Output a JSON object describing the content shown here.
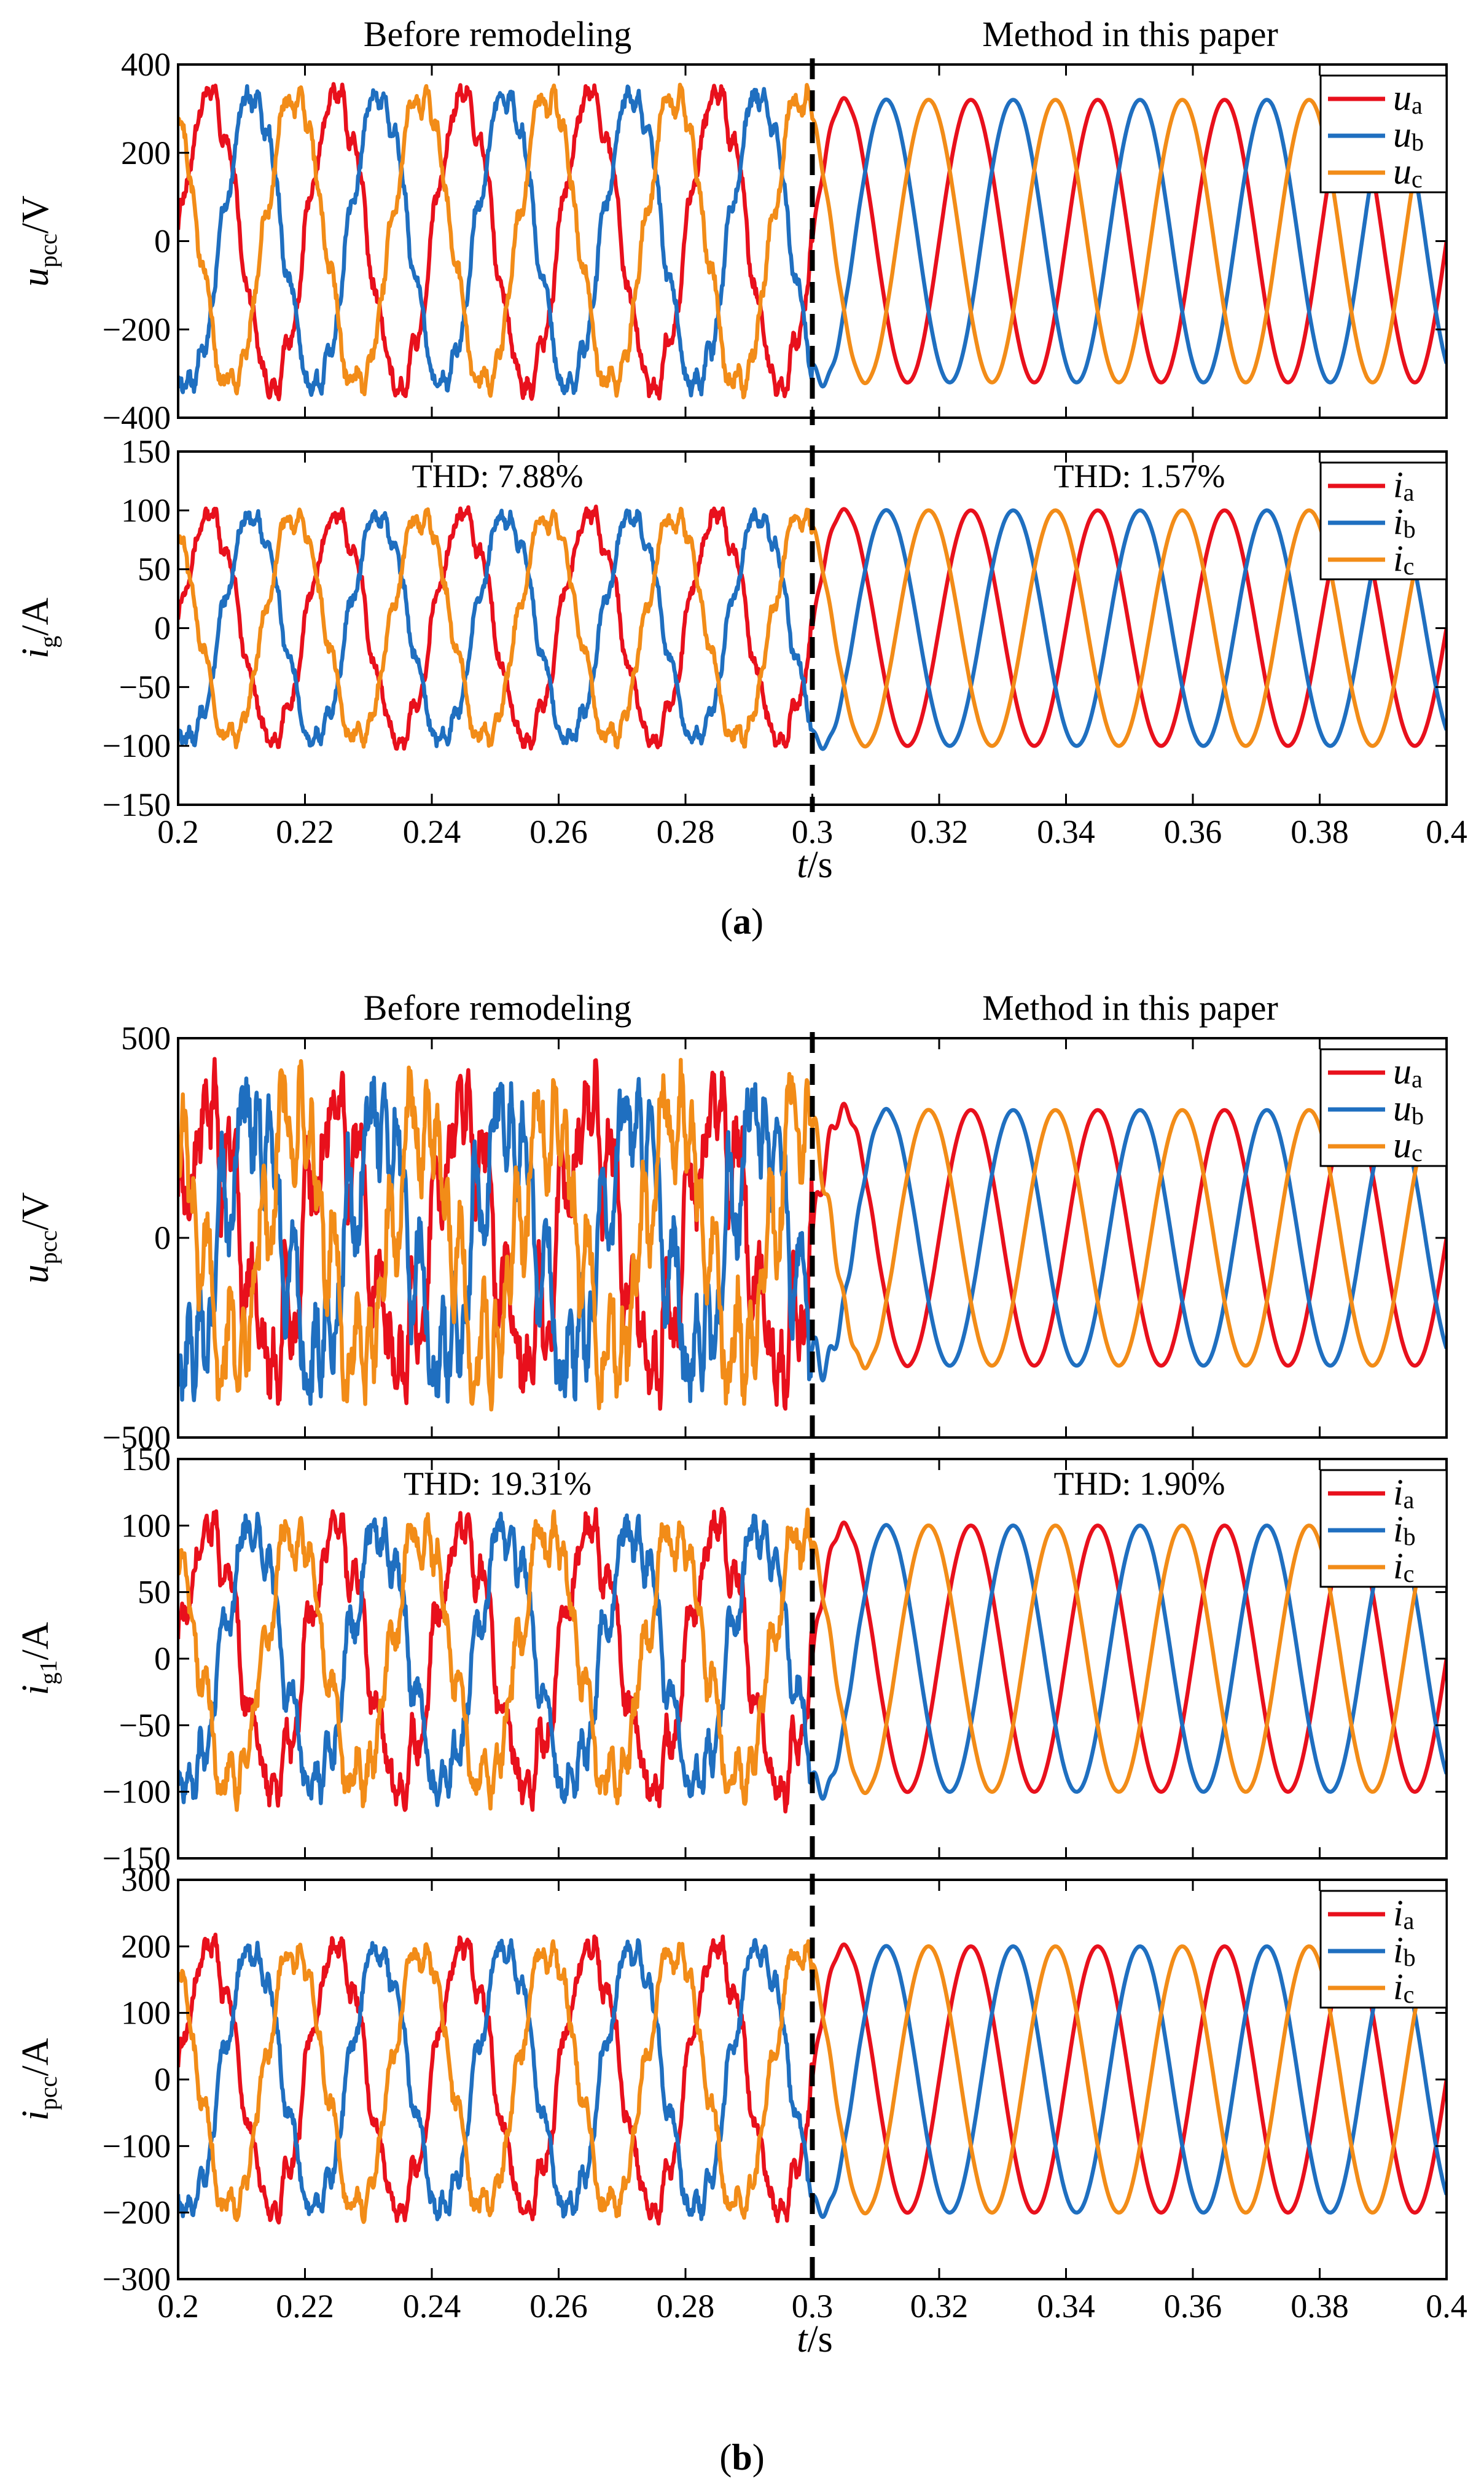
{
  "colors": {
    "a": "#e8101c",
    "b": "#1f6fc0",
    "c": "#f28c18",
    "divider": "#000000"
  },
  "chart_data": [
    {
      "type": "line",
      "panel": "a-top",
      "titles": [
        "Before remodeling",
        "Method in this paper"
      ],
      "ylabel": "u",
      "ylabel_sub": "pcc",
      "ylabel_unit": "/V",
      "xlim": [
        0.2,
        0.4
      ],
      "ylim": [
        -400,
        400
      ],
      "yticks": [
        "400",
        "200",
        "0",
        "−200",
        "−400"
      ],
      "ytick_values": [
        400,
        200,
        0,
        -200,
        -400
      ],
      "divider_x": 0.3,
      "legend": [
        {
          "main": "u",
          "sub": "a"
        },
        {
          "main": "u",
          "sub": "b"
        },
        {
          "main": "u",
          "sub": "c"
        }
      ],
      "series": [
        {
          "name": "ua",
          "amp_before": 330,
          "amp_after": 320,
          "phase_deg": 0,
          "noise": 35
        },
        {
          "name": "ub",
          "amp_before": 330,
          "amp_after": 320,
          "phase_deg": -120,
          "noise": 35
        },
        {
          "name": "uc",
          "amp_before": 330,
          "amp_after": 320,
          "phase_deg": 120,
          "noise": 35
        }
      ],
      "frequency_hz": 50
    },
    {
      "type": "line",
      "panel": "a-bottom",
      "annotations": [
        "THD: 7.88%",
        "THD: 1.57%"
      ],
      "ylabel": "i",
      "ylabel_sub": "g",
      "ylabel_unit": "/A",
      "xlim": [
        0.2,
        0.4
      ],
      "ylim": [
        -150,
        150
      ],
      "yticks": [
        "150",
        "100",
        "50",
        "0",
        "−50",
        "−100",
        "−150"
      ],
      "ytick_values": [
        150,
        100,
        50,
        0,
        -50,
        -100,
        -150
      ],
      "xticks": [
        "0.2",
        "0.22",
        "0.24",
        "0.26",
        "0.28",
        "0.3",
        "0.32",
        "0.34",
        "0.36",
        "0.38",
        "0.4"
      ],
      "xtick_values": [
        0.2,
        0.22,
        0.24,
        0.26,
        0.28,
        0.3,
        0.32,
        0.34,
        0.36,
        0.38,
        0.4
      ],
      "xlabel": "t",
      "xlabel_unit": "/s",
      "divider_x": 0.3,
      "legend": [
        {
          "main": "i",
          "sub": "a"
        },
        {
          "main": "i",
          "sub": "b"
        },
        {
          "main": "i",
          "sub": "c"
        }
      ],
      "series": [
        {
          "name": "ia",
          "amp_before": 95,
          "amp_after": 100,
          "phase_deg": 0,
          "noise": 10
        },
        {
          "name": "ib",
          "amp_before": 95,
          "amp_after": 100,
          "phase_deg": -120,
          "noise": 10
        },
        {
          "name": "ic",
          "amp_before": 95,
          "amp_after": 100,
          "phase_deg": 120,
          "noise": 10
        }
      ],
      "frequency_hz": 50
    },
    {
      "type": "line",
      "panel": "b-top",
      "titles": [
        "Before remodeling",
        "Method in this paper"
      ],
      "ylabel": "u",
      "ylabel_sub": "pcc",
      "ylabel_unit": "/V",
      "xlim": [
        0.2,
        0.4
      ],
      "ylim": [
        -500,
        500
      ],
      "yticks": [
        "500",
        "0",
        "−500"
      ],
      "ytick_values": [
        500,
        0,
        -500
      ],
      "divider_x": 0.3,
      "legend": [
        {
          "main": "u",
          "sub": "a"
        },
        {
          "main": "u",
          "sub": "b"
        },
        {
          "main": "u",
          "sub": "c"
        }
      ],
      "series": [
        {
          "name": "ua",
          "amp_before": 300,
          "amp_after": 320,
          "phase_deg": 0,
          "noise": 140
        },
        {
          "name": "ub",
          "amp_before": 300,
          "amp_after": 320,
          "phase_deg": -120,
          "noise": 140
        },
        {
          "name": "uc",
          "amp_before": 300,
          "amp_after": 320,
          "phase_deg": 120,
          "noise": 140
        }
      ],
      "frequency_hz": 50
    },
    {
      "type": "line",
      "panel": "b-middle",
      "annotations": [
        "THD: 19.31%",
        "THD: 1.90%"
      ],
      "ylabel": "i",
      "ylabel_sub": "g1",
      "ylabel_unit": "/A",
      "xlim": [
        0.2,
        0.4
      ],
      "ylim": [
        -150,
        150
      ],
      "yticks": [
        "150",
        "100",
        "50",
        "0",
        "−50",
        "−100",
        "−150"
      ],
      "ytick_values": [
        150,
        100,
        50,
        0,
        -50,
        -100,
        -150
      ],
      "divider_x": 0.3,
      "legend": [
        {
          "main": "i",
          "sub": "a"
        },
        {
          "main": "i",
          "sub": "b"
        },
        {
          "main": "i",
          "sub": "c"
        }
      ],
      "series": [
        {
          "name": "ia",
          "amp_before": 95,
          "amp_after": 100,
          "phase_deg": 0,
          "noise": 20
        },
        {
          "name": "ib",
          "amp_before": 95,
          "amp_after": 100,
          "phase_deg": -120,
          "noise": 20
        },
        {
          "name": "ic",
          "amp_before": 95,
          "amp_after": 100,
          "phase_deg": 120,
          "noise": 20
        }
      ],
      "frequency_hz": 50
    },
    {
      "type": "line",
      "panel": "b-bottom",
      "ylabel": "i",
      "ylabel_sub": "pcc",
      "ylabel_unit": "/A",
      "xlim": [
        0.2,
        0.4
      ],
      "ylim": [
        -300,
        300
      ],
      "yticks": [
        "300",
        "200",
        "100",
        "0",
        "−100",
        "−200",
        "−300"
      ],
      "ytick_values": [
        300,
        200,
        100,
        0,
        -100,
        -200,
        -300
      ],
      "xticks": [
        "0.2",
        "0.22",
        "0.24",
        "0.26",
        "0.28",
        "0.3",
        "0.32",
        "0.34",
        "0.36",
        "0.38",
        "0.4"
      ],
      "xtick_values": [
        0.2,
        0.22,
        0.24,
        0.26,
        0.28,
        0.3,
        0.32,
        0.34,
        0.36,
        0.38,
        0.4
      ],
      "xlabel": "t",
      "xlabel_unit": "/s",
      "divider_x": 0.3,
      "legend": [
        {
          "main": "i",
          "sub": "a"
        },
        {
          "main": "i",
          "sub": "b"
        },
        {
          "main": "i",
          "sub": "c"
        }
      ],
      "series": [
        {
          "name": "ia",
          "amp_before": 195,
          "amp_after": 200,
          "phase_deg": 0,
          "noise": 25
        },
        {
          "name": "ib",
          "amp_before": 195,
          "amp_after": 200,
          "phase_deg": -120,
          "noise": 25
        },
        {
          "name": "ic",
          "amp_before": 195,
          "amp_after": 200,
          "phase_deg": 120,
          "noise": 25
        }
      ],
      "frequency_hz": 50
    }
  ],
  "captions": {
    "a": "(a)",
    "b": "(b)"
  },
  "caption_parts": {
    "a": [
      "(",
      "a",
      ")"
    ],
    "b": [
      "(",
      "b",
      ")"
    ]
  }
}
